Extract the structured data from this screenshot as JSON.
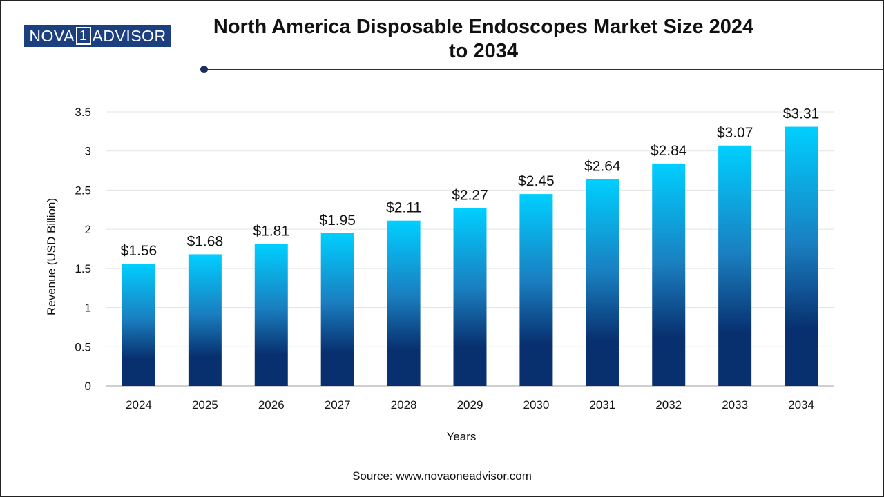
{
  "brand": {
    "logo_left": "NOVA",
    "logo_box": "1",
    "logo_right": "ADVISOR",
    "color": "#1c3f80"
  },
  "header": {
    "title_line1": "North America Disposable Endoscopes Market Size 2024",
    "title_line2": "to 2034"
  },
  "footer": {
    "source": "Source: www.novaoneadvisor.com"
  },
  "chart_data": {
    "type": "bar",
    "title": "North America Disposable Endoscopes Market Size 2024 to 2034",
    "xlabel": "Years",
    "ylabel": "Revenue (USD Billion)",
    "ylim": [
      0,
      3.5
    ],
    "yticks": [
      "0",
      "0.5",
      "1",
      "1.5",
      "2",
      "2.5",
      "3",
      "3.5"
    ],
    "grid": true,
    "categories": [
      "2024",
      "2025",
      "2026",
      "2027",
      "2028",
      "2029",
      "2030",
      "2031",
      "2032",
      "2033",
      "2034"
    ],
    "values": [
      1.56,
      1.68,
      1.81,
      1.95,
      2.11,
      2.27,
      2.45,
      2.64,
      2.84,
      3.07,
      3.31
    ],
    "data_labels": [
      "$1.56",
      "$1.68",
      "$1.81",
      "$1.95",
      "$2.11",
      "$2.27",
      "$2.45",
      "$2.64",
      "$2.84",
      "$3.07",
      "$3.31"
    ],
    "bar_gradient": [
      "#00cfff",
      "#1a7fc0",
      "#08306f"
    ]
  }
}
